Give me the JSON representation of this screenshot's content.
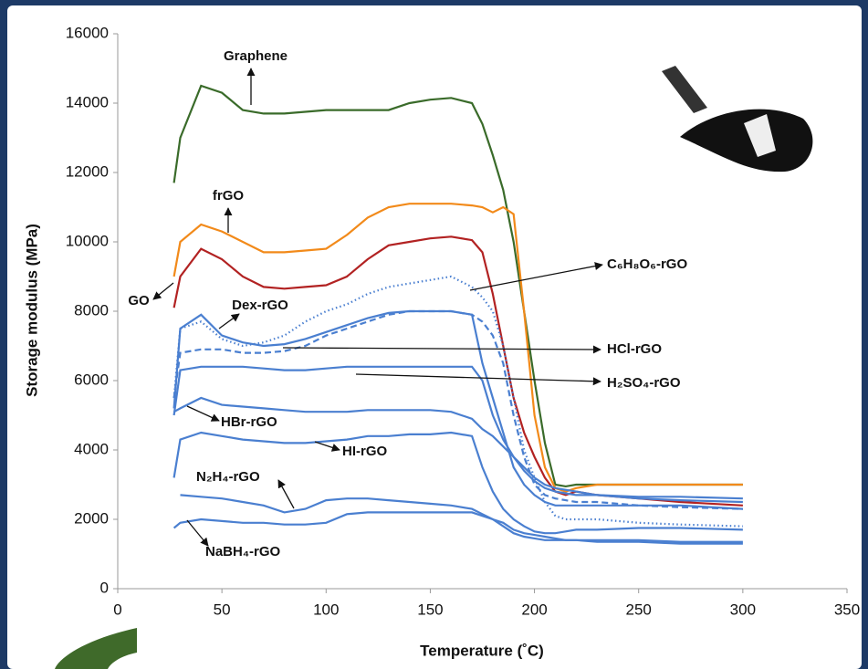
{
  "chart_data": {
    "type": "line",
    "xlabel": "Temperature (˚C)",
    "ylabel": "Storage modulus (MPa)",
    "xlim": [
      0,
      350
    ],
    "xticks": [
      0,
      50,
      100,
      150,
      200,
      250,
      300,
      350
    ],
    "ylim": [
      0,
      16000
    ],
    "yticks": [
      0,
      2000,
      4000,
      6000,
      8000,
      10000,
      12000,
      14000,
      16000
    ],
    "x": [
      27,
      30,
      40,
      50,
      60,
      70,
      80,
      90,
      100,
      110,
      120,
      130,
      140,
      150,
      160,
      170,
      175,
      180,
      185,
      190,
      195,
      200,
      205,
      210,
      215,
      220,
      230,
      250,
      270,
      300
    ],
    "series": [
      {
        "name": "Graphene",
        "color": "#3a6b2a",
        "style": "solid",
        "values": [
          11700,
          13000,
          14500,
          14300,
          13800,
          13700,
          13700,
          13750,
          13800,
          13800,
          13800,
          13800,
          14000,
          14100,
          14150,
          14000,
          13400,
          12500,
          11500,
          10000,
          8000,
          6000,
          4200,
          3000,
          2950,
          3000,
          3000,
          3000,
          3000,
          3000
        ]
      },
      {
        "name": "frGO",
        "color": "#f28a1a",
        "style": "solid",
        "values": [
          9000,
          10000,
          10500,
          10300,
          10000,
          9700,
          9700,
          9750,
          9800,
          10200,
          10700,
          11000,
          11100,
          11100,
          11100,
          11050,
          11000,
          10850,
          11000,
          10800,
          8000,
          5000,
          3500,
          2900,
          2800,
          2900,
          3000,
          3000,
          3000,
          3000
        ]
      },
      {
        "name": "GO",
        "color": "#b22222",
        "style": "solid",
        "values": [
          8100,
          9000,
          9800,
          9500,
          9000,
          8700,
          8650,
          8700,
          8750,
          9000,
          9500,
          9900,
          10000,
          10100,
          10150,
          10050,
          9700,
          8500,
          7000,
          5500,
          4500,
          3800,
          3200,
          2800,
          2700,
          2800,
          2700,
          2600,
          2500,
          2400
        ]
      },
      {
        "name": "C₆H₈O₆-rGO",
        "color": "#4a7fd0",
        "style": "dotted",
        "values": [
          5500,
          7500,
          7700,
          7200,
          7000,
          7100,
          7300,
          7700,
          8000,
          8200,
          8500,
          8700,
          8800,
          8900,
          9000,
          8700,
          8400,
          8000,
          7000,
          5500,
          4000,
          3200,
          2500,
          2100,
          2000,
          2000,
          2000,
          1900,
          1850,
          1800
        ]
      },
      {
        "name": "Dex-rGO",
        "color": "#4a7fd0",
        "style": "solid",
        "values": [
          5200,
          7500,
          7900,
          7300,
          7100,
          7000,
          7050,
          7200,
          7400,
          7600,
          7800,
          7950,
          8000,
          8000,
          8000,
          7900,
          6500,
          5500,
          4500,
          3500,
          3000,
          2700,
          2500,
          2400,
          2400,
          2400,
          2400,
          2400,
          2400,
          2300
        ]
      },
      {
        "name": "HCl-rGO",
        "color": "#4a7fd0",
        "style": "dashed",
        "values": [
          5500,
          6800,
          6900,
          6900,
          6800,
          6800,
          6850,
          7000,
          7300,
          7500,
          7700,
          7900,
          8000,
          8000,
          8000,
          7900,
          7700,
          7300,
          6500,
          5000,
          3800,
          3000,
          2700,
          2600,
          2550,
          2500,
          2500,
          2400,
          2350,
          2300
        ]
      },
      {
        "name": "H₂SO₄-rGO",
        "color": "#4a7fd0",
        "style": "solid",
        "values": [
          5000,
          6300,
          6400,
          6400,
          6400,
          6350,
          6300,
          6300,
          6350,
          6400,
          6400,
          6400,
          6400,
          6400,
          6400,
          6400,
          6000,
          5000,
          4300,
          3800,
          3400,
          3100,
          2900,
          2800,
          2750,
          2700,
          2700,
          2650,
          2650,
          2600
        ]
      },
      {
        "name": "HBr-rGO",
        "color": "#4a7fd0",
        "style": "solid",
        "values": [
          5100,
          5200,
          5500,
          5300,
          5250,
          5200,
          5150,
          5100,
          5100,
          5100,
          5150,
          5150,
          5150,
          5150,
          5100,
          4900,
          4600,
          4400,
          4100,
          3800,
          3500,
          3200,
          3000,
          2900,
          2850,
          2800,
          2700,
          2600,
          2550,
          2500
        ]
      },
      {
        "name": "HI-rGO",
        "color": "#4a7fd0",
        "style": "solid",
        "values": [
          3200,
          4300,
          4500,
          4400,
          4300,
          4250,
          4200,
          4200,
          4250,
          4300,
          4400,
          4400,
          4450,
          4450,
          4500,
          4400,
          3500,
          2800,
          2300,
          2000,
          1800,
          1650,
          1600,
          1600,
          1650,
          1700,
          1700,
          1750,
          1750,
          1700
        ]
      },
      {
        "name": "N₂H₄-rGO",
        "color": "#4a7fd0",
        "style": "solid",
        "values": [
          null,
          2700,
          2650,
          2600,
          2500,
          2400,
          2200,
          2300,
          2550,
          2600,
          2600,
          2550,
          2500,
          2450,
          2400,
          2300,
          2150,
          2000,
          1800,
          1600,
          1500,
          1450,
          1400,
          1400,
          1400,
          1400,
          1400,
          1400,
          1350,
          1350
        ]
      },
      {
        "name": "NaBH₄-rGO",
        "color": "#4a7fd0",
        "style": "solid",
        "values": [
          1750,
          1900,
          2000,
          1950,
          1900,
          1900,
          1850,
          1850,
          1900,
          2150,
          2200,
          2200,
          2200,
          2200,
          2200,
          2200,
          2100,
          2000,
          1900,
          1700,
          1600,
          1550,
          1500,
          1450,
          1400,
          1400,
          1350,
          1350,
          1300,
          1300
        ]
      }
    ]
  }
}
